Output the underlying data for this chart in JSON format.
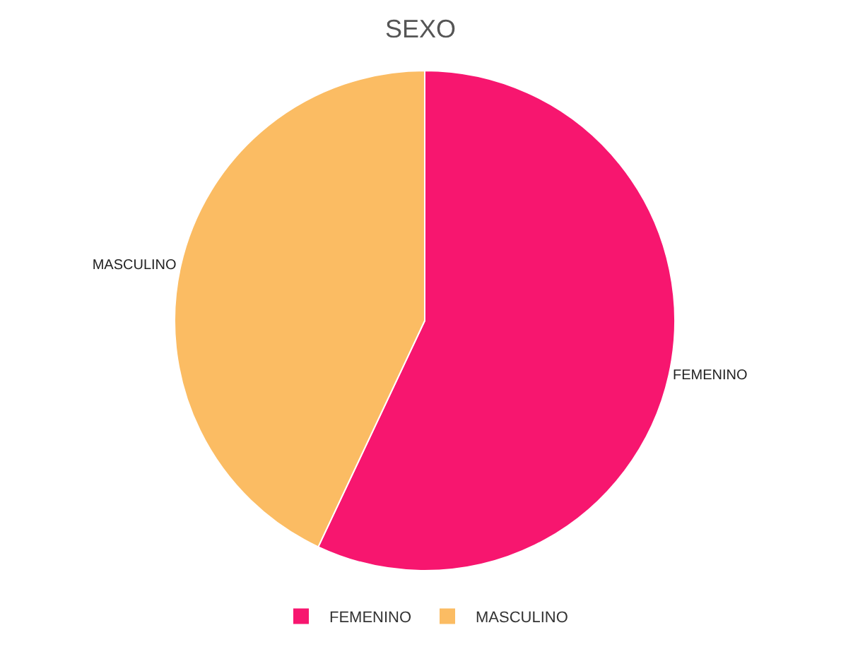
{
  "chart_data": {
    "type": "pie",
    "title": "SEXO",
    "categories": [
      "FEMENINO",
      "MASCULINO"
    ],
    "values": [
      57,
      43
    ],
    "colors": [
      "#f7166f",
      "#fbbc63"
    ],
    "legend": "bottom"
  }
}
